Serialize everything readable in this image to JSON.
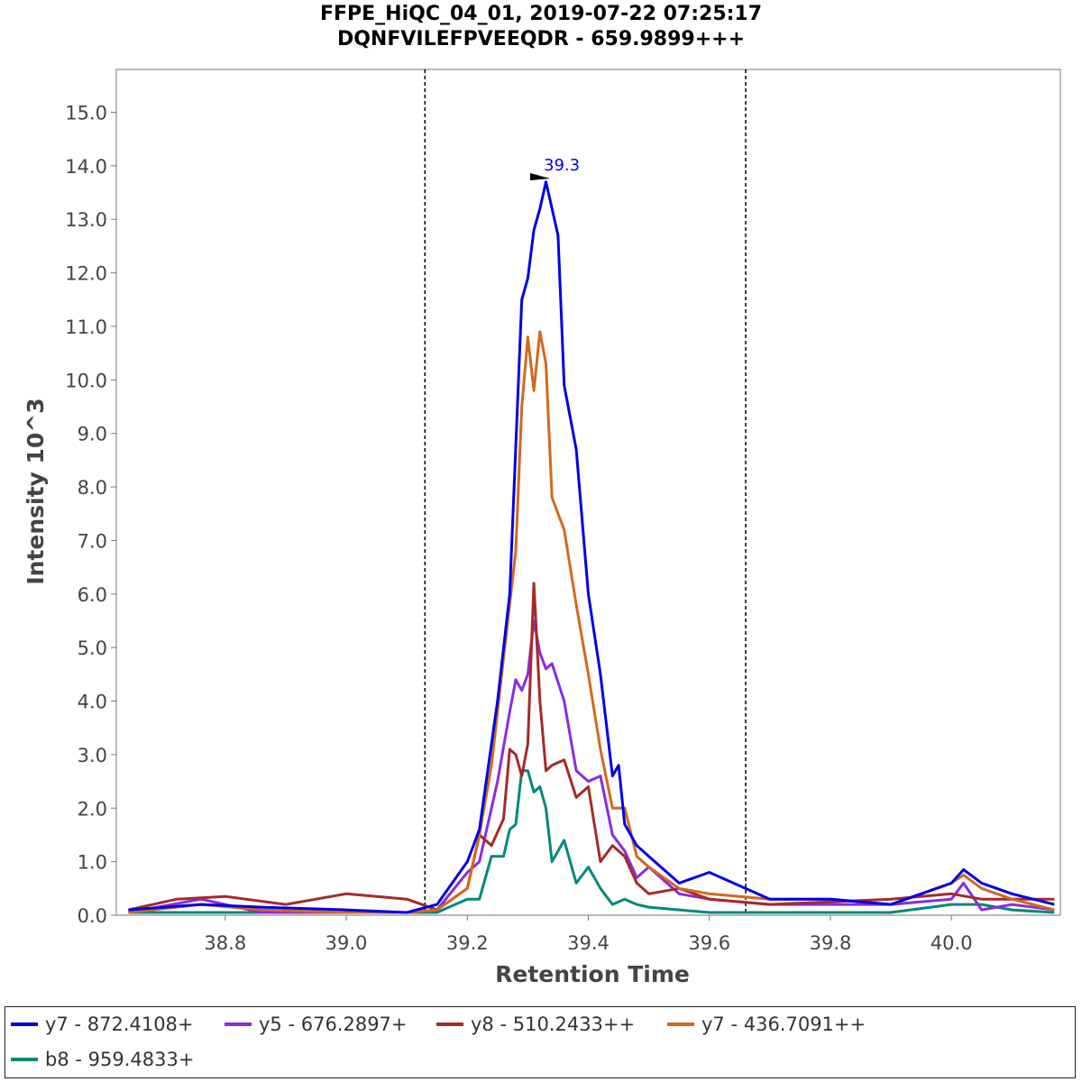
{
  "chart_data": {
    "type": "line",
    "title": "FFPE_HiQC_04_01, 2019-07-22 07:25:17",
    "subtitle": "DQNFVILEFPVEEQDR - 659.9899+++",
    "xlabel": "Retention Time",
    "ylabel": "Intensity 10^3",
    "xlim": [
      38.62,
      40.18
    ],
    "ylim": [
      0,
      15.8
    ],
    "x_ticks": [
      "38.8",
      "39.0",
      "39.2",
      "39.4",
      "39.6",
      "39.8",
      "40.0"
    ],
    "y_ticks": [
      "0.0",
      "1.0",
      "2.0",
      "3.0",
      "4.0",
      "5.0",
      "6.0",
      "7.0",
      "8.0",
      "9.0",
      "10.0",
      "11.0",
      "12.0",
      "13.0",
      "14.0",
      "15.0"
    ],
    "grid": false,
    "integration_boundaries": [
      39.13,
      39.66
    ],
    "peak_annotation": {
      "label": "39.3",
      "x": 39.33,
      "y": 13.7
    },
    "legend_position": "bottom",
    "series": [
      {
        "name": "y7 - 872.4108+",
        "color": "#0000e6",
        "x": [
          38.64,
          38.76,
          38.86,
          39.0,
          39.1,
          39.15,
          39.2,
          39.22,
          39.25,
          39.27,
          39.29,
          39.3,
          39.31,
          39.32,
          39.33,
          39.35,
          39.36,
          39.38,
          39.4,
          39.42,
          39.44,
          39.45,
          39.46,
          39.48,
          39.5,
          39.55,
          39.6,
          39.7,
          39.8,
          39.9,
          40.0,
          40.02,
          40.05,
          40.1,
          40.17
        ],
        "y": [
          0.1,
          0.2,
          0.15,
          0.1,
          0.05,
          0.2,
          1.0,
          1.6,
          4.0,
          6.0,
          11.5,
          11.9,
          12.8,
          13.2,
          13.7,
          12.7,
          9.9,
          8.7,
          6.0,
          4.5,
          2.6,
          2.8,
          1.7,
          1.3,
          1.1,
          0.6,
          0.8,
          0.3,
          0.3,
          0.2,
          0.6,
          0.85,
          0.6,
          0.4,
          0.2
        ]
      },
      {
        "name": "y5 - 676.2897+",
        "color": "#8a2be2",
        "x": [
          38.64,
          38.76,
          38.86,
          39.0,
          39.1,
          39.15,
          39.2,
          39.22,
          39.25,
          39.27,
          39.28,
          39.29,
          39.3,
          39.31,
          39.32,
          39.33,
          39.34,
          39.36,
          39.38,
          39.4,
          39.42,
          39.44,
          39.46,
          39.48,
          39.5,
          39.55,
          39.6,
          39.7,
          39.8,
          39.9,
          40.0,
          40.02,
          40.05,
          40.1,
          40.17
        ],
        "y": [
          0.05,
          0.3,
          0.05,
          0.05,
          0.05,
          0.1,
          0.8,
          1.0,
          2.5,
          3.8,
          4.4,
          4.2,
          4.5,
          5.5,
          4.9,
          4.6,
          4.7,
          4.0,
          2.7,
          2.5,
          2.6,
          1.5,
          1.2,
          0.7,
          0.9,
          0.4,
          0.3,
          0.2,
          0.2,
          0.2,
          0.3,
          0.6,
          0.1,
          0.2,
          0.1
        ]
      },
      {
        "name": "y8 - 510.2433++",
        "color": "#a52a2a",
        "x": [
          38.64,
          38.72,
          38.8,
          38.9,
          39.0,
          39.1,
          39.15,
          39.2,
          39.22,
          39.24,
          39.26,
          39.27,
          39.28,
          39.29,
          39.3,
          39.31,
          39.32,
          39.33,
          39.34,
          39.36,
          39.38,
          39.4,
          39.42,
          39.44,
          39.46,
          39.48,
          39.5,
          39.55,
          39.6,
          39.7,
          39.8,
          39.9,
          40.0,
          40.05,
          40.1,
          40.17
        ],
        "y": [
          0.1,
          0.3,
          0.35,
          0.2,
          0.4,
          0.3,
          0.1,
          0.5,
          1.5,
          1.3,
          1.8,
          3.1,
          3.0,
          2.6,
          3.2,
          6.2,
          4.0,
          2.7,
          2.8,
          2.9,
          2.2,
          2.4,
          1.0,
          1.3,
          1.1,
          0.6,
          0.4,
          0.5,
          0.3,
          0.2,
          0.25,
          0.3,
          0.4,
          0.3,
          0.3,
          0.3
        ]
      },
      {
        "name": "y7 - 436.7091++",
        "color": "#d2691e",
        "x": [
          38.64,
          38.76,
          38.86,
          39.0,
          39.1,
          39.15,
          39.2,
          39.22,
          39.24,
          39.26,
          39.28,
          39.29,
          39.3,
          39.31,
          39.32,
          39.33,
          39.34,
          39.36,
          39.38,
          39.4,
          39.42,
          39.44,
          39.46,
          39.48,
          39.5,
          39.55,
          39.6,
          39.7,
          39.8,
          39.9,
          40.0,
          40.02,
          40.05,
          40.1,
          40.17
        ],
        "y": [
          0.05,
          0.2,
          0.1,
          0.05,
          0.05,
          0.1,
          0.5,
          1.5,
          2.8,
          4.8,
          6.8,
          9.5,
          10.8,
          9.8,
          10.9,
          10.3,
          7.8,
          7.2,
          5.8,
          4.5,
          3.1,
          2.0,
          2.0,
          1.1,
          0.9,
          0.5,
          0.4,
          0.3,
          0.3,
          0.2,
          0.6,
          0.75,
          0.5,
          0.3,
          0.1
        ]
      },
      {
        "name": "b8 - 959.4833+",
        "color": "#00897b",
        "x": [
          38.64,
          38.8,
          39.0,
          39.15,
          39.2,
          39.22,
          39.24,
          39.26,
          39.27,
          39.28,
          39.29,
          39.3,
          39.31,
          39.32,
          39.33,
          39.34,
          39.36,
          39.38,
          39.4,
          39.42,
          39.44,
          39.46,
          39.48,
          39.5,
          39.55,
          39.6,
          39.7,
          39.8,
          39.9,
          40.0,
          40.05,
          40.1,
          40.17
        ],
        "y": [
          0.05,
          0.05,
          0.05,
          0.05,
          0.3,
          0.3,
          1.1,
          1.1,
          1.6,
          1.7,
          2.7,
          2.7,
          2.3,
          2.4,
          2.0,
          1.0,
          1.4,
          0.6,
          0.9,
          0.5,
          0.2,
          0.3,
          0.2,
          0.15,
          0.1,
          0.05,
          0.05,
          0.05,
          0.05,
          0.2,
          0.2,
          0.1,
          0.05
        ]
      }
    ]
  }
}
